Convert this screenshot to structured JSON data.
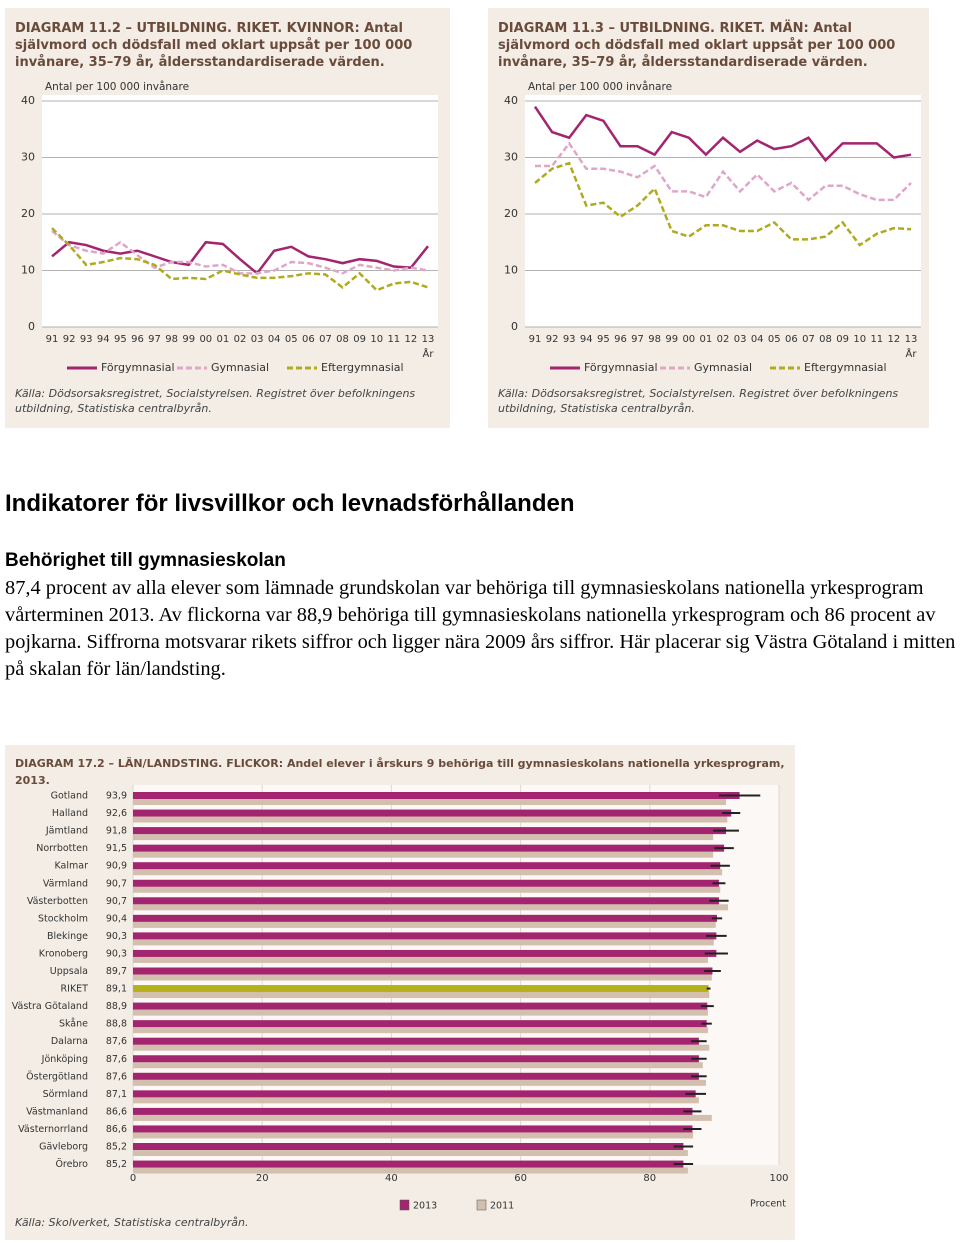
{
  "chart_data": [
    {
      "type": "line",
      "title": "DIAGRAM 11.2 – UTBILDNING. RIKET. KVINNOR: Antal självmord och dödsfall med oklart uppsåt per 100 000 invånare, 35–79 år, åldersstandardiserade värden.",
      "y_label": "Antal per 100 000 invånare",
      "x_label": "År",
      "categories": [
        "91",
        "92",
        "93",
        "94",
        "95",
        "96",
        "97",
        "98",
        "99",
        "00",
        "01",
        "02",
        "03",
        "04",
        "05",
        "06",
        "07",
        "08",
        "09",
        "10",
        "11",
        "12",
        "13"
      ],
      "ylim": [
        0,
        40
      ],
      "yticks": [
        0,
        10,
        20,
        30,
        40
      ],
      "grid": true,
      "series": [
        {
          "name": "Förgymnasial",
          "color": "#a3256f",
          "dashed": false,
          "values": [
            12.5,
            15,
            14.5,
            13.5,
            13,
            13.5,
            12.5,
            11.5,
            11,
            15,
            14.7,
            12,
            9.5,
            13.5,
            14.2,
            12.5,
            12,
            11.3,
            12,
            11.7,
            10.7,
            10.5,
            14.3
          ]
        },
        {
          "name": "Gymnasial",
          "color": "#e0a6c9",
          "dashed": true,
          "values": [
            17,
            14.5,
            13.5,
            13,
            15,
            12.7,
            10.5,
            11.5,
            11.5,
            10.7,
            11,
            9.5,
            9.5,
            10,
            11.5,
            11.3,
            10.5,
            9.5,
            11,
            10.5,
            10,
            10.5,
            10
          ]
        },
        {
          "name": "Eftergymnasial",
          "color": "#b0aa1f",
          "dashed": true,
          "values": [
            17.5,
            14.5,
            11,
            11.5,
            12.2,
            12,
            11,
            8.5,
            8.7,
            8.5,
            10,
            9.3,
            8.7,
            8.7,
            9,
            9.5,
            9.3,
            7,
            9.5,
            6.5,
            7.7,
            8,
            7
          ]
        }
      ],
      "source": "Källa: Dödsorsaksregistret, Socialstyrelsen. Registret över befolkningens utbildning, Statistiska centralbyrån."
    },
    {
      "type": "line",
      "title": "DIAGRAM 11.3 – UTBILDNING. RIKET. MÄN: Antal självmord och dödsfall med oklart uppsåt per 100 000 invånare, 35–79 år, åldersstandardiserade värden.",
      "y_label": "Antal per 100 000 invånare",
      "x_label": "År",
      "categories": [
        "91",
        "92",
        "93",
        "94",
        "95",
        "96",
        "97",
        "98",
        "99",
        "00",
        "01",
        "02",
        "03",
        "04",
        "05",
        "06",
        "07",
        "08",
        "09",
        "10",
        "11",
        "12",
        "13"
      ],
      "ylim": [
        0,
        40
      ],
      "yticks": [
        0,
        10,
        20,
        30,
        40
      ],
      "grid": true,
      "series": [
        {
          "name": "Förgymnasial",
          "color": "#a3256f",
          "dashed": false,
          "values": [
            39,
            34.5,
            33.5,
            37.5,
            36.5,
            32,
            32,
            30.5,
            34.5,
            33.5,
            30.5,
            33.5,
            31,
            33,
            31.5,
            32,
            33.5,
            29.5,
            32.5,
            32.5,
            32.5,
            30,
            30.5
          ]
        },
        {
          "name": "Gymnasial",
          "color": "#e0a6c9",
          "dashed": true,
          "values": [
            28.5,
            28.5,
            32.5,
            28,
            28,
            27.5,
            26.5,
            28.5,
            24,
            24,
            23,
            27.5,
            24,
            27,
            24,
            25.5,
            22.5,
            25,
            25,
            23.5,
            22.5,
            22.5,
            25.5
          ]
        },
        {
          "name": "Eftergymnasial",
          "color": "#b0aa1f",
          "dashed": true,
          "values": [
            25.5,
            28,
            29,
            21.5,
            22,
            19.5,
            21.5,
            24.5,
            17,
            16,
            18,
            18,
            17,
            17,
            18.5,
            15.5,
            15.5,
            16,
            18.5,
            14.5,
            16.5,
            17.5,
            17.3
          ]
        }
      ],
      "source": "Källa: Dödsorsaksregistret, Socialstyrelsen. Registret över befolkningens utbildning, Statistiska centralbyrån."
    },
    {
      "type": "hbar",
      "title": "DIAGRAM 17.2 – LÄN/LANDSTING. FLICKOR: Andel elever i årskurs 9 behöriga till gymnasieskolans nationella yrkesprogram, 2013.",
      "x_label": "Procent",
      "categories": [
        "Gotland",
        "Halland",
        "Jämtland",
        "Norrbotten",
        "Kalmar",
        "Värmland",
        "Västerbotten",
        "Stockholm",
        "Blekinge",
        "Kronoberg",
        "Uppsala",
        "RIKET",
        "Västra Götaland",
        "Skåne",
        "Dalarna",
        "Jönköping",
        "Östergötland",
        "Sörmland",
        "Västmanland",
        "Västernorrland",
        "Gävleborg",
        "Örebro"
      ],
      "xlim": [
        0,
        100
      ],
      "xticks": [
        0,
        20,
        40,
        60,
        80,
        100
      ],
      "grid": true,
      "series": [
        {
          "name": "2013",
          "color": "#a3256f",
          "colors": [
            "#a3256f",
            "#a3256f",
            "#a3256f",
            "#a3256f",
            "#a3256f",
            "#a3256f",
            "#a3256f",
            "#a3256f",
            "#a3256f",
            "#a3256f",
            "#a3256f",
            "#b5b11a",
            "#a3256f",
            "#a3256f",
            "#a3256f",
            "#a3256f",
            "#a3256f",
            "#a3256f",
            "#a3256f",
            "#a3256f",
            "#a3256f",
            "#a3256f"
          ],
          "values": [
            93.9,
            92.6,
            91.8,
            91.5,
            90.9,
            90.7,
            90.7,
            90.4,
            90.3,
            90.3,
            89.7,
            89.1,
            88.9,
            88.8,
            87.6,
            87.6,
            87.6,
            87.1,
            86.6,
            86.6,
            85.2,
            85.2
          ],
          "value_labels": [
            "93,9",
            "92,6",
            "91,8",
            "91,5",
            "90,9",
            "90,7",
            "90,7",
            "90,4",
            "90,3",
            "90,3",
            "89,7",
            "89,1",
            "88,9",
            "88,8",
            "87,6",
            "87,6",
            "87,6",
            "87,1",
            "86,6",
            "86,6",
            "85,2",
            "85,2"
          ],
          "errors": [
            3.2,
            1.4,
            2.0,
            1.5,
            1.5,
            1.0,
            1.5,
            0.8,
            1.6,
            1.8,
            1.3,
            0.3,
            1.0,
            0.8,
            1.2,
            1.2,
            1.2,
            1.6,
            1.4,
            1.4,
            1.5,
            1.5
          ]
        },
        {
          "name": "2011",
          "color": "#d3bfae",
          "values": [
            91.8,
            92,
            89.8,
            89.8,
            91.2,
            90.9,
            92.1,
            90.2,
            89.9,
            89,
            89.6,
            89.2,
            89,
            89,
            89.2,
            88.2,
            88.7,
            87.6,
            89.6,
            86.7,
            85.9,
            85.9
          ]
        }
      ],
      "source": "Källa: Skolverket, Statistiska centralbyrån."
    }
  ],
  "document": {
    "heading": "Indikatorer för livsvillkor och levnadsförhållanden",
    "subheading": "Behörighet till gymnasieskolan",
    "paragraph": "87,4 procent av alla elever som lämnade grundskolan var behöriga till gymnasieskolans nationella yrkesprogram vårterminen 2013. Av flickorna var 88,9 behöriga till gymnasieskolans nationella yrkesprogram och 86 procent av pojkarna. Siffrorna motsvarar rikets siffror och ligger nära 2009 års siffror. Här placerar sig Västra Götaland i mitten på skalan för län/landsting."
  }
}
